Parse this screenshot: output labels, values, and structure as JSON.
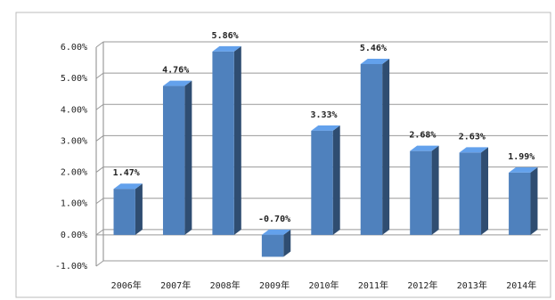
{
  "chart_data": {
    "type": "bar3d",
    "categories": [
      "2006年",
      "2007年",
      "2008年",
      "2009年",
      "2010年",
      "2011年",
      "2012年",
      "2013年",
      "2014年"
    ],
    "values": [
      1.47,
      4.76,
      5.86,
      -0.7,
      3.33,
      5.46,
      2.68,
      2.63,
      1.99
    ],
    "value_labels": [
      "1.47%",
      "4.76%",
      "5.86%",
      "-0.70%",
      "3.33%",
      "5.46%",
      "2.68%",
      "2.63%",
      "1.99%"
    ],
    "color": "#4f81bd",
    "label_color": "#e46c0a",
    "ylim": [
      -1,
      6
    ],
    "yticks": [
      {
        "value": -1,
        "label": "-1.00%"
      },
      {
        "value": 0,
        "label": "0.00%"
      },
      {
        "value": 1,
        "label": "1.00%"
      },
      {
        "value": 2,
        "label": "2.00%"
      },
      {
        "value": 3,
        "label": "3.00%"
      },
      {
        "value": 4,
        "label": "4.00%"
      },
      {
        "value": 5,
        "label": "5.00%"
      },
      {
        "value": 6,
        "label": "6.00%"
      }
    ],
    "grid": true
  }
}
